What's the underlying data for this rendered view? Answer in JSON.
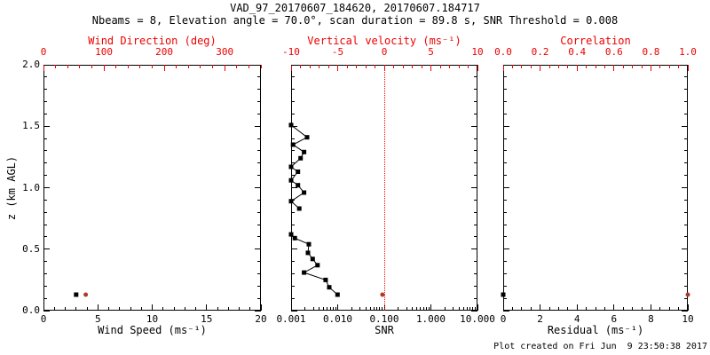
{
  "header": {
    "title": "VAD_97_20170607_184620, 20170607.184717",
    "subtitle": "Nbeams = 8, Elevation angle = 70.0°, scan duration = 89.8 s, SNR Threshold = 0.008"
  },
  "footer": {
    "created": "Plot created on Fri Jun  9 23:50:38 2017"
  },
  "colors": {
    "background": "#ffffff",
    "frame": "#000000",
    "axis_red": "#ee0000",
    "marker_black": "#000000",
    "marker_red": "#b03a2a"
  },
  "chart_data": {
    "type": "line",
    "grid": "off",
    "y_axis": {
      "title": "z (km AGL)",
      "range": [
        0,
        2
      ],
      "tick_values": [
        0,
        0.5,
        1,
        1.5,
        2
      ],
      "tick_labels": [
        "0.0",
        "0.5",
        "1.0",
        "1.5",
        "2.0"
      ],
      "minor_step": 0.1
    },
    "panels": [
      {
        "name": "wind-panel",
        "top_axis": {
          "title": "Wind Direction (deg)",
          "color": "red",
          "range": [
            0,
            360
          ],
          "tick_values": [
            0,
            100,
            200,
            300
          ],
          "tick_labels": [
            "0",
            "100",
            "200",
            "300"
          ],
          "minor_step": 20
        },
        "bottom_axis": {
          "title": "Wind Speed (ms⁻¹)",
          "scale": "linear",
          "range": [
            0,
            20
          ],
          "tick_values": [
            0,
            5,
            10,
            15,
            20
          ],
          "tick_labels": [
            "0",
            "5",
            "10",
            "15",
            "20"
          ],
          "minor_step": 1
        },
        "series": [
          {
            "name": "wind-speed",
            "axis": "bottom",
            "color": "#000000",
            "marker": "square",
            "line": false,
            "points": [
              {
                "x": 3.0,
                "z": 0.13
              }
            ]
          },
          {
            "name": "wind-direction",
            "axis": "top",
            "color": "#b03a2a",
            "marker": "dot",
            "line": false,
            "points": [
              {
                "x": 70,
                "z": 0.13
              }
            ]
          }
        ]
      },
      {
        "name": "snr-panel",
        "top_axis": {
          "title": "Vertical velocity (ms⁻¹)",
          "color": "red",
          "range": [
            -10,
            10
          ],
          "tick_values": [
            -10,
            -5,
            0,
            5,
            10
          ],
          "tick_labels": [
            "-10",
            "-5",
            "0",
            "5",
            "10"
          ],
          "minor_step": 1,
          "ref_line": 0
        },
        "bottom_axis": {
          "title": "SNR",
          "scale": "log",
          "range": [
            0.001,
            10
          ],
          "tick_values": [
            0.001,
            0.01,
            0.1,
            1,
            10
          ],
          "tick_labels": [
            "0.001",
            "0.010",
            "0.100",
            "1.000",
            "10.000"
          ]
        },
        "series": [
          {
            "name": "snr-profile-upper",
            "axis": "bottom",
            "color": "#000000",
            "marker": "square",
            "line": true,
            "points": [
              {
                "x": 0.001,
                "z": 1.51
              },
              {
                "x": 0.0022,
                "z": 1.41
              },
              {
                "x": 0.0011,
                "z": 1.35
              },
              {
                "x": 0.0019,
                "z": 1.29
              },
              {
                "x": 0.0016,
                "z": 1.24
              },
              {
                "x": 0.001,
                "z": 1.17
              },
              {
                "x": 0.0014,
                "z": 1.13
              },
              {
                "x": 0.001,
                "z": 1.06
              },
              {
                "x": 0.0014,
                "z": 1.02
              },
              {
                "x": 0.0019,
                "z": 0.96
              },
              {
                "x": 0.001,
                "z": 0.89
              },
              {
                "x": 0.0015,
                "z": 0.83
              }
            ]
          },
          {
            "name": "snr-profile-lower",
            "axis": "bottom",
            "color": "#000000",
            "marker": "square",
            "line": true,
            "points": [
              {
                "x": 0.001,
                "z": 0.62
              },
              {
                "x": 0.0012,
                "z": 0.59
              },
              {
                "x": 0.0024,
                "z": 0.54
              },
              {
                "x": 0.0023,
                "z": 0.47
              },
              {
                "x": 0.0029,
                "z": 0.42
              },
              {
                "x": 0.0037,
                "z": 0.37
              },
              {
                "x": 0.0019,
                "z": 0.31
              },
              {
                "x": 0.0055,
                "z": 0.25
              },
              {
                "x": 0.0066,
                "z": 0.19
              },
              {
                "x": 0.0099,
                "z": 0.13
              }
            ]
          },
          {
            "name": "vertical-velocity",
            "axis": "top",
            "color": "#b03a2a",
            "marker": "dot",
            "line": false,
            "points": [
              {
                "x": -0.2,
                "z": 0.13
              }
            ]
          }
        ]
      },
      {
        "name": "residual-panel",
        "top_axis": {
          "title": "Correlation",
          "color": "red",
          "range": [
            0,
            1
          ],
          "tick_values": [
            0,
            0.2,
            0.4,
            0.6,
            0.8,
            1.0
          ],
          "tick_labels": [
            "0.0",
            "0.2",
            "0.4",
            "0.6",
            "0.8",
            "1.0"
          ],
          "minor_step": 0.05
        },
        "bottom_axis": {
          "title": "Residual (ms⁻¹)",
          "scale": "linear",
          "range": [
            0,
            10
          ],
          "tick_values": [
            0,
            2,
            4,
            6,
            8,
            10
          ],
          "tick_labels": [
            "0",
            "2",
            "4",
            "6",
            "8",
            "10"
          ],
          "minor_step": 0.5
        },
        "series": [
          {
            "name": "residual",
            "axis": "bottom",
            "color": "#000000",
            "marker": "square",
            "line": false,
            "points": [
              {
                "x": 0.0,
                "z": 0.13
              }
            ]
          },
          {
            "name": "correlation",
            "axis": "top",
            "color": "#b03a2a",
            "marker": "dot",
            "line": false,
            "points": [
              {
                "x": 1.0,
                "z": 0.13
              }
            ]
          }
        ]
      }
    ]
  }
}
